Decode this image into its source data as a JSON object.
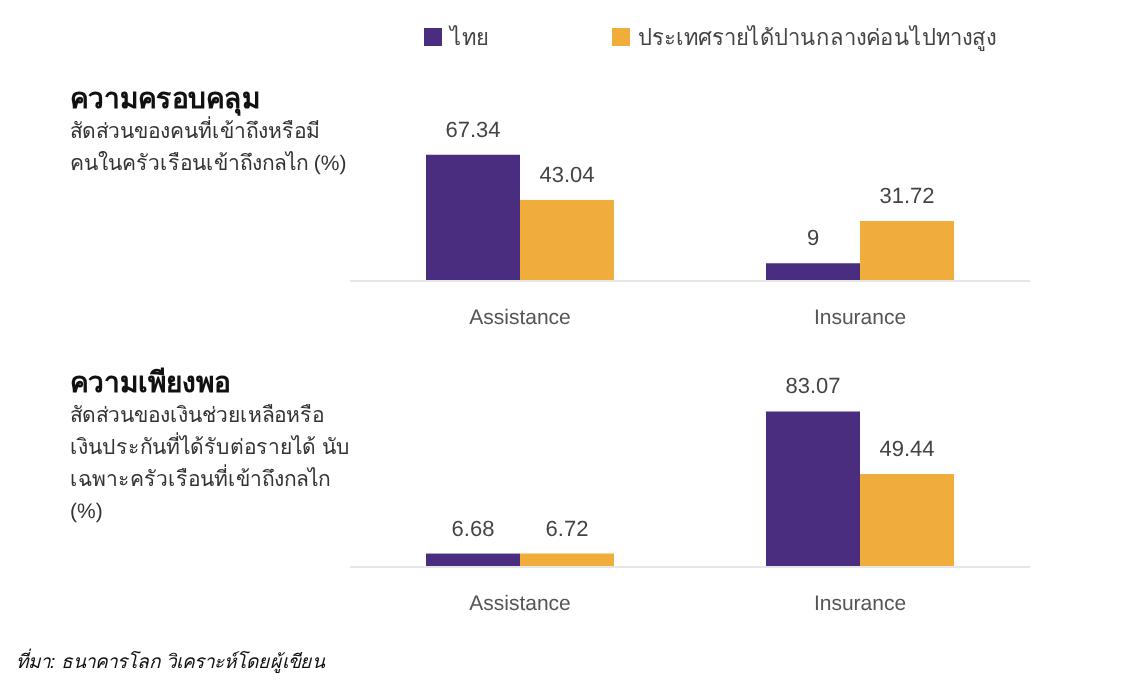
{
  "chart_data": [
    {
      "type": "bar",
      "title": "ความครอบคลุม",
      "subtitle": "สัดส่วนของคนที่เข้าถึงหรือมีคนในครัวเรือนเข้าถึงกลไก (%)",
      "categories": [
        "Assistance",
        "Insurance"
      ],
      "data_labels": true,
      "legend": "top",
      "series": [
        {
          "name": "ไทย",
          "color": "#4b2d7f",
          "values": [
            67.34,
            9
          ]
        },
        {
          "name": "ประเทศรายได้ปานกลางค่อนไปทางสูง",
          "color": "#f0ad3c",
          "values": [
            43.04,
            31.72
          ]
        }
      ]
    },
    {
      "type": "bar",
      "title": "ความเพียงพอ",
      "subtitle": "สัดส่วนของเงินช่วยเหลือหรือเงินประกันที่ได้รับต่อรายได้ นับเฉพาะครัวเรือนที่เข้าถึงกลไก (%)",
      "categories": [
        "Assistance",
        "Insurance"
      ],
      "data_labels": true,
      "series": [
        {
          "color": "#4b2d7f",
          "values": [
            6.68,
            83.07
          ]
        },
        {
          "color": "#f0ad3c",
          "values": [
            6.72,
            49.44
          ]
        }
      ],
      "annotations": [
        "ที่มา: ธนาคารโลก วิเคราะห์โดยผู้เขียน"
      ]
    }
  ]
}
